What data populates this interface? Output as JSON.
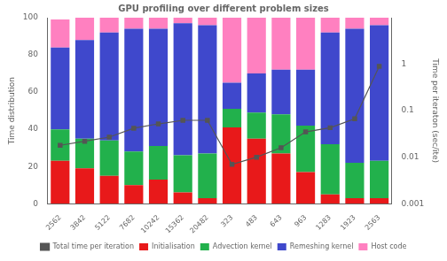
{
  "chart_data": {
    "type": "bar",
    "title": "GPU profiling over different problem sizes",
    "ylabel": "Time distribution",
    "y2label": "Time per iteraton (sec/ite)",
    "categories": [
      "2562",
      "3842",
      "5122",
      "7682",
      "10242",
      "15362",
      "20482",
      "323",
      "483",
      "643",
      "963",
      "1283",
      "1923",
      "2563"
    ],
    "series": [
      {
        "name": "Initialisation",
        "color": "#e8191a",
        "values": [
          23,
          19,
          15,
          10,
          13,
          6,
          3,
          41,
          35,
          27,
          17,
          5,
          3,
          3
        ]
      },
      {
        "name": "Advection kernel",
        "color": "#22b14c",
        "values": [
          17,
          16,
          19,
          18,
          18,
          20,
          24,
          10,
          14,
          21,
          25,
          27,
          19,
          20
        ]
      },
      {
        "name": "Remeshing kernel",
        "color": "#3f48cc",
        "values": [
          44,
          53,
          58,
          66,
          63,
          71,
          69,
          14,
          21,
          24,
          30,
          60,
          72,
          73
        ]
      },
      {
        "name": "Host code",
        "color": "#ff80c0",
        "values": [
          15,
          12,
          8,
          6,
          6,
          3,
          4,
          35,
          30,
          28,
          28,
          8,
          6,
          4
        ]
      },
      {
        "name": "Total time per iteration",
        "type": "line",
        "axis": "y2",
        "color": "#555555",
        "marker": "square",
        "line_style": "solid",
        "values": [
          0.018,
          0.022,
          0.027,
          0.042,
          0.052,
          0.062,
          0.062,
          0.007,
          0.01,
          0.016,
          0.035,
          0.043,
          0.067,
          0.9
        ]
      }
    ],
    "stacked": true,
    "ylim": [
      0,
      100
    ],
    "yticks": [
      0,
      20,
      40,
      60,
      80,
      100
    ],
    "y2lim": [
      0.001,
      10
    ],
    "y2ticks": [
      0.001,
      0.01,
      0.1,
      1
    ],
    "log": "y2",
    "grid": false,
    "legend": "bottom"
  }
}
